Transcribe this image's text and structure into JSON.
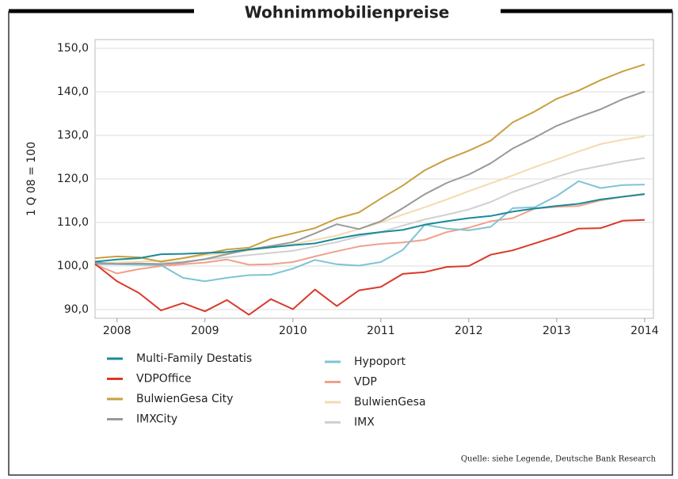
{
  "chart_data": {
    "type": "line",
    "title": "Wohnimmobilienpreise",
    "y_label": "1 Q 08 = 100",
    "source": "Quelle: siehe Legende, Deutsche Bank Research",
    "x": [
      2007.75,
      2008,
      2008.25,
      2008.5,
      2008.75,
      2009,
      2009.25,
      2009.5,
      2009.75,
      2010,
      2010.25,
      2010.5,
      2010.75,
      2011,
      2011.25,
      2011.5,
      2011.75,
      2012,
      2012.25,
      2012.5,
      2012.75,
      2013,
      2013.25,
      2013.5,
      2013.75,
      2014
    ],
    "xlim": [
      2007.75,
      2014.1
    ],
    "xticks": [
      2008,
      2009,
      2010,
      2011,
      2012,
      2013,
      2014
    ],
    "ylim": [
      90,
      150
    ],
    "yticks": [
      {
        "value": 90,
        "label": "90,0"
      },
      {
        "value": 100,
        "label": "100,0"
      },
      {
        "value": 110,
        "label": "110,0"
      },
      {
        "value": 120,
        "label": "120,0"
      },
      {
        "value": 130,
        "label": "130,0"
      },
      {
        "value": 140,
        "label": "140,0"
      },
      {
        "value": 150,
        "label": "150,0"
      }
    ],
    "grid": true,
    "series": [
      {
        "name": "Multi-Family Destatis",
        "color": "#1a8a9a",
        "values": [
          101.0,
          101.5,
          101.8,
          102.7,
          102.8,
          103.0,
          103.2,
          103.8,
          104.3,
          104.8,
          105.2,
          106.3,
          107.2,
          107.8,
          108.3,
          109.5,
          110.3,
          111.0,
          111.5,
          112.5,
          113.2,
          113.8,
          114.3,
          115.3,
          115.9,
          116.5
        ]
      },
      {
        "name": "VDPOffice",
        "color": "#d93a2b",
        "values": [
          100.5,
          96.5,
          93.8,
          89.8,
          91.5,
          89.6,
          92.2,
          88.8,
          92.4,
          90.1,
          94.6,
          90.8,
          94.4,
          95.2,
          98.2,
          98.6,
          99.8,
          100.0,
          102.6,
          103.6,
          105.2,
          106.8,
          108.6,
          108.7,
          110.4,
          110.6
        ]
      },
      {
        "name": "BulwienGesa City",
        "color": "#c9a040",
        "values": [
          101.8,
          102.2,
          102.0,
          101.0,
          101.8,
          102.8,
          103.8,
          104.2,
          106.3,
          107.5,
          108.7,
          110.9,
          112.3,
          115.5,
          118.5,
          122.0,
          124.5,
          126.5,
          128.8,
          133.0,
          135.5,
          138.4,
          140.3,
          142.7,
          144.7,
          146.3
        ]
      },
      {
        "name": "IMXCity",
        "color": "#999999",
        "values": [
          100.8,
          100.5,
          100.6,
          100.4,
          100.8,
          101.6,
          102.7,
          103.8,
          104.6,
          105.5,
          107.5,
          109.6,
          108.5,
          110.3,
          113.3,
          116.5,
          119.1,
          121.0,
          123.6,
          127.0,
          129.5,
          132.2,
          134.2,
          136.0,
          138.3,
          140.1
        ]
      },
      {
        "name": "Hypoport",
        "color": "#7fc4d4",
        "values": [
          100.5,
          100.4,
          100.3,
          100.2,
          97.3,
          96.5,
          97.3,
          97.9,
          98.0,
          99.4,
          101.4,
          100.4,
          100.1,
          100.9,
          103.7,
          109.5,
          108.6,
          108.2,
          109.0,
          113.3,
          113.5,
          116.1,
          119.5,
          117.9,
          118.6,
          118.7
        ]
      },
      {
        "name": "VDP",
        "color": "#f0a08a",
        "values": [
          100.3,
          98.3,
          99.3,
          100.0,
          100.4,
          100.8,
          101.5,
          100.3,
          100.4,
          100.9,
          102.2,
          103.4,
          104.5,
          105.1,
          105.4,
          106.0,
          107.8,
          108.8,
          110.3,
          111.0,
          113.2,
          113.6,
          113.8,
          115.1,
          115.9,
          116.6
        ]
      },
      {
        "name": "BulwienGesa",
        "color": "#f2dbb0",
        "values": [
          100.5,
          100.8,
          101.0,
          101.2,
          101.8,
          102.5,
          103.0,
          103.6,
          104.3,
          105.0,
          106.0,
          107.0,
          108.5,
          110.0,
          111.8,
          113.5,
          115.3,
          117.2,
          119.0,
          120.8,
          122.7,
          124.5,
          126.3,
          128.0,
          129.0,
          129.8
        ]
      },
      {
        "name": "IMX",
        "color": "#d0d0d0",
        "values": [
          100.3,
          100.5,
          100.5,
          100.6,
          101.0,
          101.5,
          102.0,
          102.5,
          103.0,
          103.5,
          104.5,
          105.5,
          106.8,
          107.8,
          109.3,
          110.7,
          111.8,
          113.0,
          114.7,
          117.0,
          118.7,
          120.5,
          122.0,
          123.0,
          124.0,
          124.8
        ]
      }
    ]
  }
}
